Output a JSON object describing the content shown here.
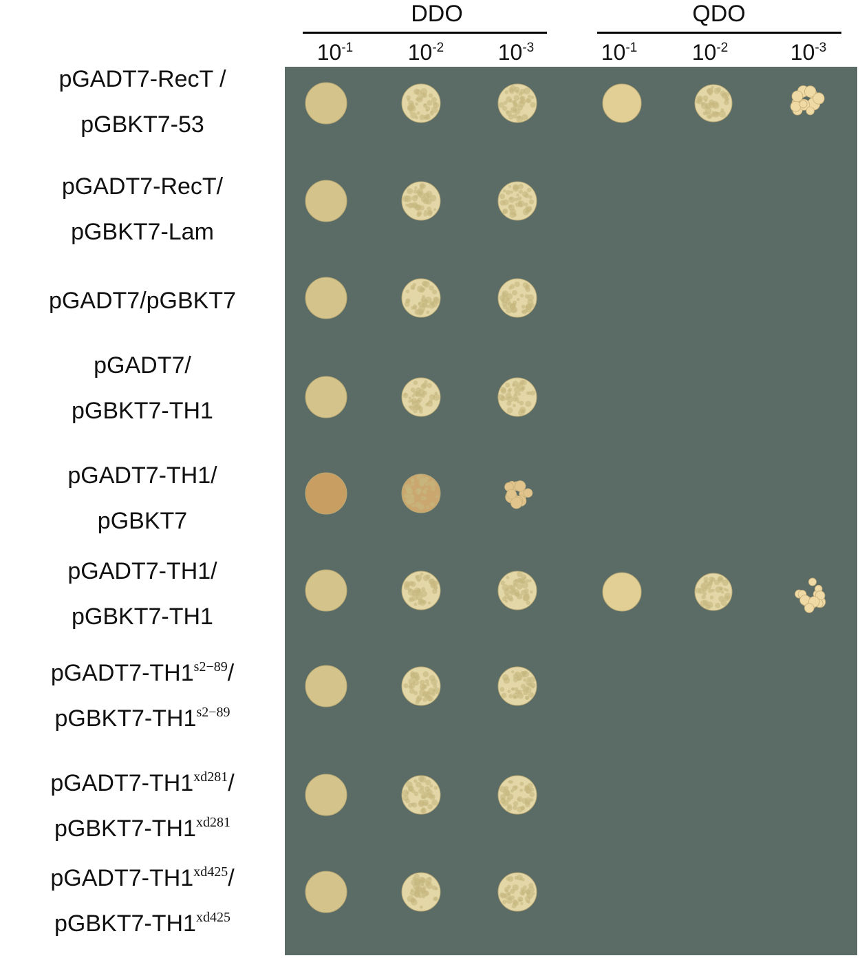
{
  "colors": {
    "plate": "#5a6c65",
    "colony_dense": "#d4c48b",
    "colony_grainy": "#e3d7a8",
    "colony_orange": "#c99e62",
    "colony_qdo": "#efd9a4"
  },
  "groups": [
    {
      "label": "DDO",
      "dilutions": [
        {
          "base": "10",
          "exp": "-1"
        },
        {
          "base": "10",
          "exp": "-2"
        },
        {
          "base": "10",
          "exp": "-3"
        }
      ]
    },
    {
      "label": "QDO",
      "dilutions": [
        {
          "base": "10",
          "exp": "-1"
        },
        {
          "base": "10",
          "exp": "-2"
        },
        {
          "base": "10",
          "exp": "-3"
        }
      ]
    }
  ],
  "rows": [
    {
      "line1": "pGADT7-RecT /",
      "sup1": "",
      "line2": "pGBKT7-53",
      "sup2": "",
      "qdo_growth": [
        true,
        true,
        true
      ]
    },
    {
      "line1": "pGADT7-RecT/",
      "sup1": "",
      "line2": "pGBKT7-Lam",
      "sup2": "",
      "qdo_growth": [
        false,
        false,
        false
      ]
    },
    {
      "line1": "pGADT7/pGBKT7",
      "sup1": "",
      "line2": "",
      "sup2": "",
      "qdo_growth": [
        false,
        false,
        false
      ]
    },
    {
      "line1": "pGADT7/",
      "sup1": "",
      "line2": "pGBKT7-TH1",
      "sup2": "",
      "qdo_growth": [
        false,
        false,
        false
      ]
    },
    {
      "line1": "pGADT7-TH1/",
      "sup1": "",
      "line2": "pGBKT7",
      "sup2": "",
      "qdo_growth": [
        false,
        false,
        false
      ]
    },
    {
      "line1": "pGADT7-TH1/",
      "sup1": "",
      "line2": "pGBKT7-TH1",
      "sup2": "",
      "qdo_growth": [
        true,
        true,
        true
      ]
    },
    {
      "line1": "pGADT7-TH1",
      "sup1": "s2−89",
      "line1_suffix": "/",
      "line2": "pGBKT7-TH1",
      "sup2": "s2−89",
      "qdo_growth": [
        false,
        false,
        false
      ]
    },
    {
      "line1": "pGADT7-TH1",
      "sup1": "xd281",
      "line1_suffix": "/",
      "line2": "pGBKT7-TH1",
      "sup2": "xd281",
      "qdo_growth": [
        false,
        false,
        false
      ]
    },
    {
      "line1": "pGADT7-TH1",
      "sup1": "xd425",
      "line1_suffix": "/",
      "line2": "pGBKT7-TH1",
      "sup2": "xd425",
      "qdo_growth": [
        false,
        false,
        false
      ]
    }
  ]
}
